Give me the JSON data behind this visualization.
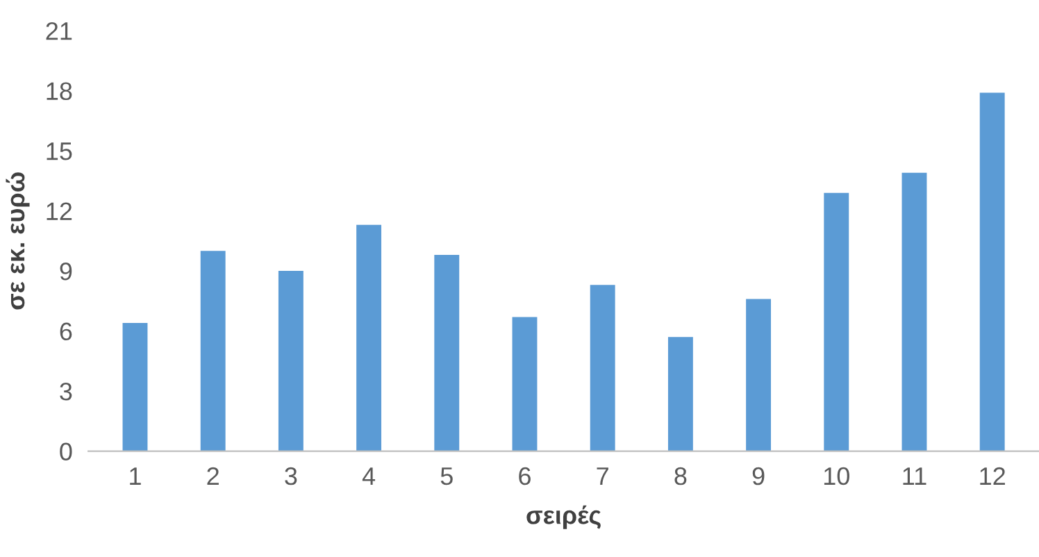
{
  "chart_data": {
    "type": "bar",
    "xlabel": "σειρές",
    "ylabel": "σε εκ. ευρώ",
    "categories": [
      "1",
      "2",
      "3",
      "4",
      "5",
      "6",
      "7",
      "8",
      "9",
      "10",
      "11",
      "12"
    ],
    "values": [
      6.4,
      10.0,
      9.0,
      11.3,
      9.8,
      6.7,
      8.3,
      5.7,
      7.6,
      12.9,
      13.9,
      17.9
    ],
    "color": "#5b9bd5",
    "ylim": [
      0,
      21
    ],
    "yticks": [
      0,
      3,
      6,
      9,
      12,
      15,
      18,
      21
    ],
    "grid": false
  }
}
